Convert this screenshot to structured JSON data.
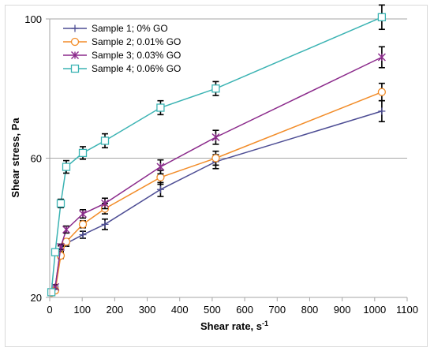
{
  "chart_data": {
    "type": "line",
    "xlabel": "Shear rate, s",
    "xlabel_sup": "-1",
    "ylabel": "Shear stress, Pa",
    "xlim": [
      0,
      1100
    ],
    "ylim": [
      20,
      100
    ],
    "x_ticks": [
      0,
      100,
      200,
      300,
      400,
      500,
      600,
      700,
      800,
      900,
      1000,
      1100
    ],
    "y_ticks": [
      20,
      60,
      100
    ],
    "grid": "horizontal",
    "legend": "top-left",
    "x": [
      5.1,
      17,
      34,
      51,
      102,
      170,
      341,
      511,
      1022
    ],
    "series": [
      {
        "name": "Sample 1; 0% GO",
        "color": "#4d4d94",
        "marker": "plus",
        "values": [
          21.5,
          23.0,
          34.0,
          35.5,
          38.0,
          41.0,
          51.0,
          59.0,
          73.5
        ],
        "errors": [
          0.6,
          0.6,
          0.8,
          0.8,
          1.0,
          1.5,
          2.0,
          2.0,
          3.0
        ]
      },
      {
        "name": "Sample 2; 0.01% GO",
        "color": "#f28c28",
        "marker": "circle",
        "values": [
          21.3,
          22.0,
          32.0,
          36.0,
          41.0,
          45.5,
          54.5,
          60.0,
          79.0
        ],
        "errors": [
          0.6,
          0.6,
          0.8,
          0.8,
          1.0,
          1.5,
          2.0,
          2.0,
          2.5
        ]
      },
      {
        "name": "Sample 3; 0.03% GO",
        "color": "#8b2a8b",
        "marker": "star",
        "values": [
          21.5,
          23.0,
          34.5,
          39.5,
          44.0,
          47.0,
          57.5,
          66.0,
          89.0
        ],
        "errors": [
          0.6,
          0.6,
          0.8,
          1.0,
          1.2,
          1.5,
          2.0,
          2.0,
          3.0
        ]
      },
      {
        "name": "Sample 4; 0.06% GO",
        "color": "#3bb3b3",
        "marker": "square",
        "values": [
          21.5,
          33.0,
          47.0,
          57.5,
          61.5,
          65.0,
          74.5,
          80.0,
          100.5
        ],
        "errors": [
          0.6,
          0.8,
          1.2,
          1.8,
          1.8,
          2.0,
          2.0,
          2.0,
          3.5
        ]
      }
    ]
  }
}
